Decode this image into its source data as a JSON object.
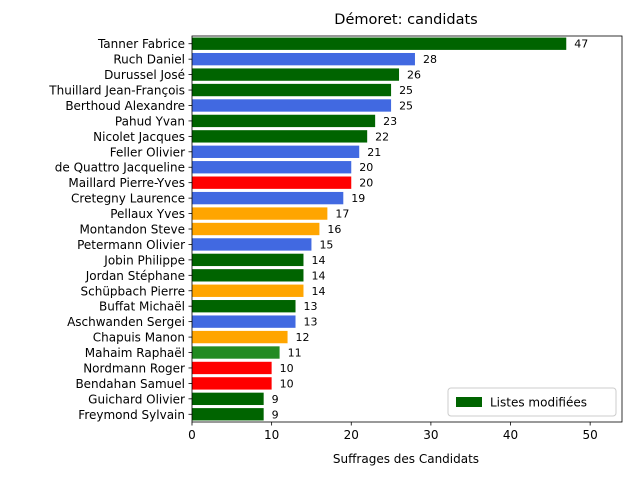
{
  "chart_data": {
    "type": "bar",
    "orientation": "horizontal",
    "title": "Démoret: candidats",
    "xlabel": "Suffrages des Candidats",
    "ylabel": "",
    "xlim": [
      0,
      54
    ],
    "xticks": [
      0,
      10,
      20,
      30,
      40,
      50
    ],
    "grid": false,
    "legend": {
      "placement": "lower-right",
      "entries": [
        {
          "label": "Listes modifiées",
          "color": "#006400"
        }
      ]
    },
    "categories": [
      "Tanner Fabrice",
      "Ruch Daniel",
      "Durussel José",
      "Thuillard Jean-François",
      "Berthoud Alexandre",
      "Pahud Yvan",
      "Nicolet Jacques",
      "Feller Olivier",
      "de Quattro Jacqueline",
      "Maillard Pierre-Yves",
      "Cretegny Laurence",
      "Pellaux Yves",
      "Montandon Steve",
      "Petermann Olivier",
      "Jobin Philippe",
      "Jordan Stéphane",
      "Schüpbach Pierre",
      "Buffat Michaël",
      "Aschwanden Sergei",
      "Chapuis Manon",
      "Mahaim Raphaël",
      "Nordmann Roger",
      "Bendahan Samuel",
      "Guichard Olivier",
      "Freymond Sylvain"
    ],
    "values": [
      47,
      28,
      26,
      25,
      25,
      23,
      22,
      21,
      20,
      20,
      19,
      17,
      16,
      15,
      14,
      14,
      14,
      13,
      13,
      12,
      11,
      10,
      10,
      9,
      9
    ],
    "colors": [
      "#006400",
      "#4169e1",
      "#006400",
      "#006400",
      "#4169e1",
      "#006400",
      "#006400",
      "#4169e1",
      "#4169e1",
      "#ff0000",
      "#4169e1",
      "#ffa500",
      "#ffa500",
      "#4169e1",
      "#006400",
      "#006400",
      "#ffa500",
      "#006400",
      "#4169e1",
      "#ffa500",
      "#228b22",
      "#ff0000",
      "#ff0000",
      "#006400",
      "#006400"
    ]
  }
}
